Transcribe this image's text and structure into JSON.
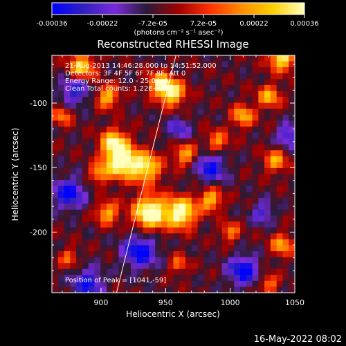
{
  "chart_data": {
    "type": "heatmap",
    "title": "Reconstructed RHESSI Image",
    "xlabel": "Heliocentric X (arcsec)",
    "ylabel": "Heliocentric Y (arcsec)",
    "xlim": [
      862,
      1050
    ],
    "ylim": [
      -247,
      -63
    ],
    "x_ticks": [
      "900",
      "950",
      "1000",
      "1050"
    ],
    "y_ticks": [
      "-100",
      "-150",
      "-200"
    ],
    "colorbar": {
      "range": [
        -0.00036,
        0.00036
      ],
      "ticks": [
        "-0.00036",
        "-0.00022",
        "-7.2e-05",
        "7.2e-05",
        "0.00022",
        "0.00036"
      ],
      "unit_label": "(photons cm⁻² s⁻¹ asec⁻²)",
      "colors": [
        "#0000ff",
        "#3020c0",
        "#7a2ad8",
        "#2a1a38",
        "#a00000",
        "#ff3000",
        "#ff8c00",
        "#ffd000",
        "#ffffc0"
      ]
    },
    "limb_line": {
      "x1": 912,
      "y1": -247,
      "x2": 958,
      "y2": -63
    },
    "info": [
      "21-Aug-2013 14:46:28.000 to 14:51:52.000",
      "Detectors: 3F 4F 5F 6F 7F 8F, Att 0",
      "Energy Range: 12.0 - 25.0 keV",
      "Clean    Total counts: 1.22E+04"
    ],
    "peak_label": "Position of Peak = [1041,-59]",
    "blobs": [
      {
        "x": 885,
        "y": -72,
        "s": 7,
        "a": 0.9
      },
      {
        "x": 905,
        "y": -95,
        "s": 6,
        "a": 0.8
      },
      {
        "x": 910,
        "y": -130,
        "s": 7,
        "a": 0.85
      },
      {
        "x": 915,
        "y": -145,
        "s": 9,
        "a": 1.25
      },
      {
        "x": 898,
        "y": -155,
        "s": 5,
        "a": 0.6
      },
      {
        "x": 935,
        "y": -150,
        "s": 8,
        "a": 0.95
      },
      {
        "x": 938,
        "y": -185,
        "s": 9,
        "a": 1.25
      },
      {
        "x": 962,
        "y": -185,
        "s": 8,
        "a": 1.2
      },
      {
        "x": 985,
        "y": -175,
        "s": 6,
        "a": 0.8
      },
      {
        "x": 905,
        "y": -185,
        "s": 6,
        "a": 0.75
      },
      {
        "x": 955,
        "y": -92,
        "s": 7,
        "a": 1.0
      },
      {
        "x": 945,
        "y": -85,
        "s": 6,
        "a": 0.85
      },
      {
        "x": 965,
        "y": -140,
        "s": 6,
        "a": 0.7
      },
      {
        "x": 1010,
        "y": -110,
        "s": 6,
        "a": 0.75
      },
      {
        "x": 1030,
        "y": -95,
        "s": 6,
        "a": 0.75
      },
      {
        "x": 1040,
        "y": -65,
        "s": 7,
        "a": 1.0
      },
      {
        "x": 1035,
        "y": -145,
        "s": 6,
        "a": 0.7
      },
      {
        "x": 990,
        "y": -130,
        "s": 6,
        "a": 0.6
      },
      {
        "x": 1000,
        "y": -200,
        "s": 5,
        "a": 0.6
      },
      {
        "x": 1040,
        "y": -210,
        "s": 6,
        "a": 0.7
      },
      {
        "x": 1030,
        "y": -240,
        "s": 5,
        "a": 0.6
      },
      {
        "x": 870,
        "y": -110,
        "s": 5,
        "a": 0.6
      },
      {
        "x": 875,
        "y": -220,
        "s": 5,
        "a": 0.5
      },
      {
        "x": 960,
        "y": -225,
        "s": 5,
        "a": 0.5
      },
      {
        "x": 880,
        "y": -90,
        "s": 8,
        "a": -0.6
      },
      {
        "x": 875,
        "y": -170,
        "s": 8,
        "a": -0.8
      },
      {
        "x": 930,
        "y": -215,
        "s": 9,
        "a": -0.8
      },
      {
        "x": 985,
        "y": -150,
        "s": 8,
        "a": -0.7
      },
      {
        "x": 1010,
        "y": -230,
        "s": 8,
        "a": -0.8
      },
      {
        "x": 1045,
        "y": -125,
        "s": 6,
        "a": -0.6
      },
      {
        "x": 960,
        "y": -120,
        "s": 6,
        "a": -0.5
      },
      {
        "x": 890,
        "y": -240,
        "s": 8,
        "a": -0.7
      },
      {
        "x": 1025,
        "y": -185,
        "s": 6,
        "a": -0.5
      }
    ]
  },
  "footer_timestamp": "16-May-2022 08:02"
}
